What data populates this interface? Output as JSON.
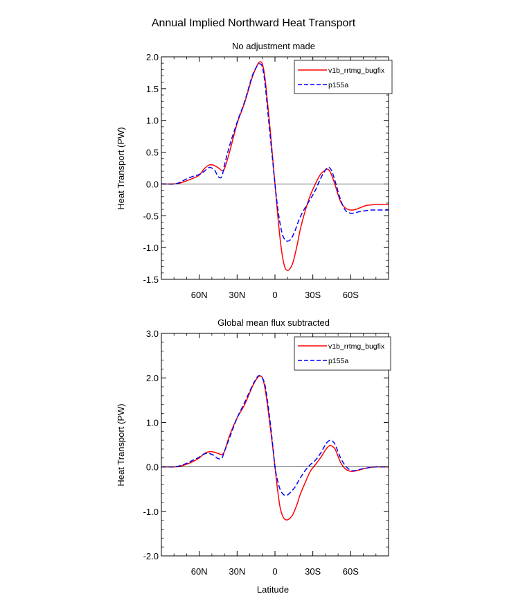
{
  "figure_title": "Annual Implied Northward Heat Transport",
  "series_styles": [
    {
      "name": "v1b_rrtmg_bugfix",
      "color": "#ff0000",
      "dash": "none"
    },
    {
      "name": "p155a",
      "color": "#0000ff",
      "dash": "dashed"
    }
  ],
  "chart_data": [
    {
      "type": "line",
      "title": "No adjustment made",
      "xlabel": "",
      "ylabel": "Heat Transport (PW)",
      "xlim": [
        -90,
        90
      ],
      "ylim": [
        -1.5,
        2.0
      ],
      "x_ticks": [
        {
          "value": -60,
          "label": "60N"
        },
        {
          "value": -30,
          "label": "30N"
        },
        {
          "value": 0,
          "label": "0"
        },
        {
          "value": 30,
          "label": "30S"
        },
        {
          "value": 60,
          "label": "60S"
        }
      ],
      "y_ticks": [
        {
          "value": 2.0,
          "label": "2.0"
        },
        {
          "value": 1.5,
          "label": "1.5"
        },
        {
          "value": 1.0,
          "label": "1.0"
        },
        {
          "value": 0.5,
          "label": "0.5"
        },
        {
          "value": 0.0,
          "label": "0.0"
        },
        {
          "value": -0.5,
          "label": "-0.5"
        },
        {
          "value": -1.0,
          "label": "-1.0"
        },
        {
          "value": -1.5,
          "label": "-1.5"
        }
      ],
      "legend": {
        "position": "top-right"
      },
      "series": [
        {
          "name": "v1b_rrtmg_bugfix",
          "x": [
            -90,
            -80,
            -76,
            -70,
            -65,
            -60,
            -56,
            -52,
            -48,
            -44,
            -42,
            -40,
            -36,
            -30,
            -24,
            -18,
            -14,
            -12,
            -10,
            -8,
            -6,
            -4,
            -2,
            0,
            2,
            4,
            6,
            8,
            10,
            12,
            14,
            16,
            18,
            20,
            24,
            28,
            32,
            36,
            40,
            42,
            44,
            46,
            48,
            52,
            56,
            60,
            64,
            68,
            72,
            76,
            80,
            84,
            90
          ],
          "y": [
            0.0,
            0.0,
            0.01,
            0.05,
            0.09,
            0.14,
            0.24,
            0.3,
            0.29,
            0.24,
            0.21,
            0.24,
            0.5,
            0.95,
            1.28,
            1.68,
            1.87,
            1.92,
            1.89,
            1.68,
            1.3,
            0.9,
            0.45,
            0.0,
            -0.45,
            -0.85,
            -1.15,
            -1.32,
            -1.36,
            -1.33,
            -1.25,
            -1.1,
            -0.92,
            -0.72,
            -0.42,
            -0.18,
            0.0,
            0.15,
            0.22,
            0.23,
            0.18,
            0.08,
            -0.04,
            -0.28,
            -0.38,
            -0.41,
            -0.4,
            -0.37,
            -0.34,
            -0.33,
            -0.32,
            -0.32,
            -0.32
          ]
        },
        {
          "name": "p155a",
          "x": [
            -90,
            -80,
            -76,
            -70,
            -65,
            -60,
            -56,
            -52,
            -48,
            -46,
            -44,
            -42,
            -40,
            -36,
            -30,
            -24,
            -18,
            -14,
            -12,
            -10,
            -8,
            -6,
            -4,
            -2,
            0,
            2,
            4,
            6,
            8,
            10,
            12,
            14,
            16,
            18,
            20,
            24,
            28,
            32,
            36,
            40,
            42,
            44,
            46,
            48,
            52,
            56,
            60,
            64,
            68,
            72,
            76,
            80,
            84,
            90
          ],
          "y": [
            0.0,
            0.0,
            0.02,
            0.08,
            0.12,
            0.15,
            0.2,
            0.26,
            0.22,
            0.15,
            0.1,
            0.12,
            0.3,
            0.6,
            0.97,
            1.3,
            1.7,
            1.86,
            1.89,
            1.84,
            1.6,
            1.2,
            0.8,
            0.4,
            0.0,
            -0.35,
            -0.62,
            -0.8,
            -0.88,
            -0.9,
            -0.88,
            -0.82,
            -0.73,
            -0.62,
            -0.52,
            -0.37,
            -0.24,
            -0.1,
            0.08,
            0.22,
            0.26,
            0.24,
            0.15,
            0.02,
            -0.25,
            -0.42,
            -0.46,
            -0.45,
            -0.43,
            -0.42,
            -0.41,
            -0.41,
            -0.41,
            -0.41
          ]
        }
      ]
    },
    {
      "type": "line",
      "title": "Global mean flux subtracted",
      "xlabel": "Latitude",
      "ylabel": "Heat Transport (PW)",
      "xlim": [
        -90,
        90
      ],
      "ylim": [
        -2.0,
        3.0
      ],
      "x_ticks": [
        {
          "value": -60,
          "label": "60N"
        },
        {
          "value": -30,
          "label": "30N"
        },
        {
          "value": 0,
          "label": "0"
        },
        {
          "value": 30,
          "label": "30S"
        },
        {
          "value": 60,
          "label": "60S"
        }
      ],
      "y_ticks": [
        {
          "value": 3.0,
          "label": "3.0"
        },
        {
          "value": 2.0,
          "label": "2.0"
        },
        {
          "value": 1.0,
          "label": "1.0"
        },
        {
          "value": 0.0,
          "label": "0.0"
        },
        {
          "value": -1.0,
          "label": "-1.0"
        },
        {
          "value": -2.0,
          "label": "-2.0"
        }
      ],
      "legend": {
        "position": "top-right"
      },
      "series": [
        {
          "name": "v1b_rrtmg_bugfix",
          "x": [
            -90,
            -80,
            -76,
            -70,
            -65,
            -60,
            -56,
            -52,
            -48,
            -44,
            -42,
            -40,
            -36,
            -30,
            -24,
            -18,
            -14,
            -12,
            -10,
            -8,
            -6,
            -4,
            -2,
            0,
            2,
            4,
            6,
            8,
            10,
            12,
            14,
            16,
            18,
            20,
            24,
            28,
            32,
            36,
            40,
            42,
            44,
            46,
            48,
            52,
            56,
            60,
            64,
            68,
            72,
            76,
            80,
            84,
            90
          ],
          "y": [
            0.0,
            0.0,
            0.01,
            0.06,
            0.12,
            0.2,
            0.3,
            0.34,
            0.33,
            0.29,
            0.28,
            0.35,
            0.7,
            1.1,
            1.4,
            1.8,
            2.0,
            2.04,
            2.0,
            1.78,
            1.4,
            0.95,
            0.5,
            0.0,
            -0.5,
            -0.9,
            -1.1,
            -1.18,
            -1.19,
            -1.15,
            -1.08,
            -0.95,
            -0.8,
            -0.62,
            -0.35,
            -0.1,
            0.05,
            0.2,
            0.38,
            0.45,
            0.48,
            0.45,
            0.38,
            0.1,
            -0.05,
            -0.1,
            -0.09,
            -0.06,
            -0.03,
            -0.01,
            0.0,
            0.0,
            0.0
          ]
        },
        {
          "name": "p155a",
          "x": [
            -90,
            -80,
            -76,
            -70,
            -65,
            -60,
            -56,
            -52,
            -48,
            -46,
            -44,
            -42,
            -40,
            -36,
            -30,
            -24,
            -18,
            -14,
            -12,
            -10,
            -8,
            -6,
            -4,
            -2,
            0,
            2,
            4,
            6,
            8,
            10,
            12,
            14,
            16,
            18,
            20,
            24,
            28,
            32,
            36,
            40,
            42,
            44,
            46,
            48,
            52,
            56,
            60,
            64,
            68,
            72,
            76,
            80,
            84,
            90
          ],
          "y": [
            0.0,
            0.0,
            0.02,
            0.08,
            0.15,
            0.22,
            0.29,
            0.3,
            0.25,
            0.2,
            0.18,
            0.2,
            0.35,
            0.65,
            1.1,
            1.45,
            1.82,
            2.02,
            2.05,
            2.0,
            1.85,
            1.5,
            1.05,
            0.55,
            0.0,
            -0.3,
            -0.5,
            -0.6,
            -0.64,
            -0.63,
            -0.58,
            -0.52,
            -0.45,
            -0.35,
            -0.25,
            -0.08,
            0.05,
            0.15,
            0.3,
            0.5,
            0.57,
            0.6,
            0.57,
            0.48,
            0.2,
            0.02,
            -0.08,
            -0.08,
            -0.05,
            -0.03,
            -0.01,
            0.0,
            0.0,
            0.0
          ]
        }
      ]
    }
  ]
}
